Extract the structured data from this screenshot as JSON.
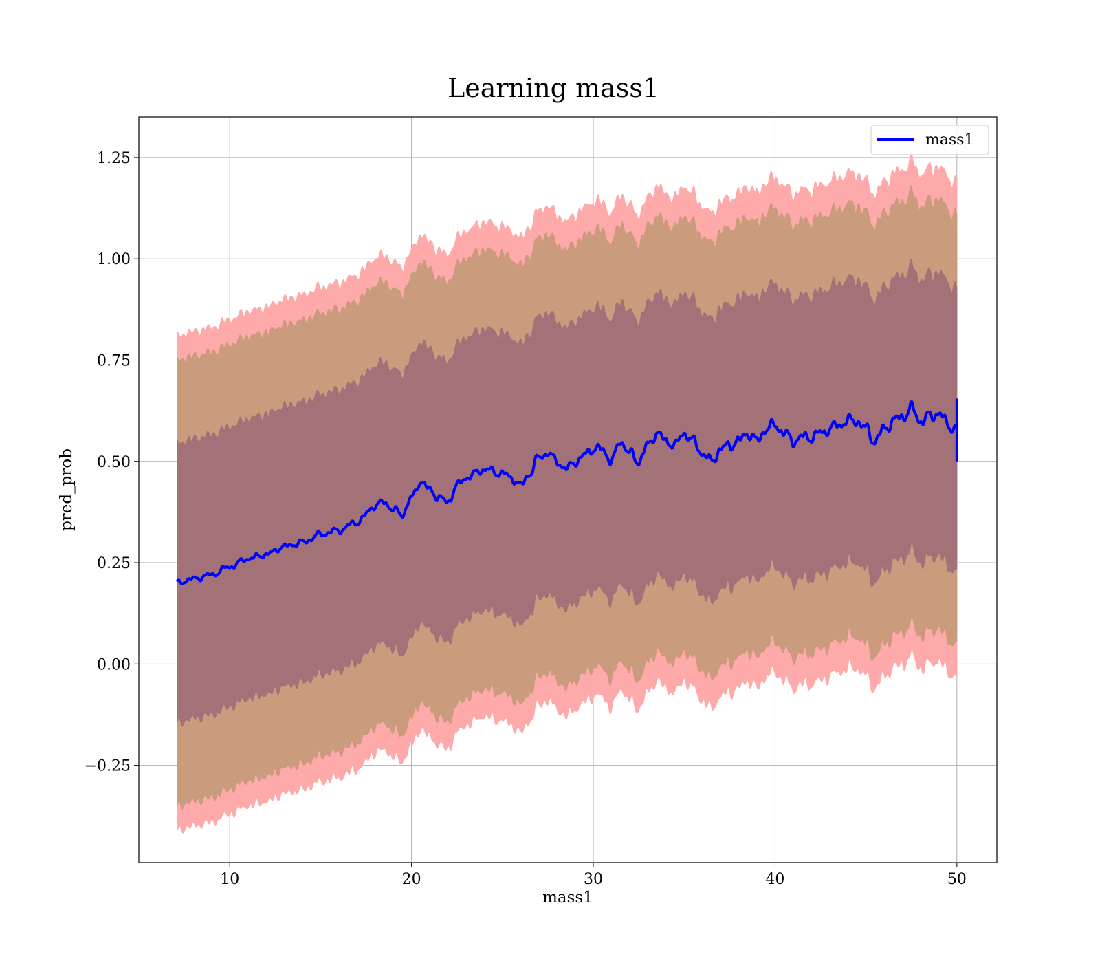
{
  "chart_data": {
    "type": "line",
    "title": "Learning mass1",
    "xlabel": "mass1",
    "ylabel": "pred_prob",
    "xlim": [
      5,
      52.2
    ],
    "ylim": [
      -0.49,
      1.35
    ],
    "xticks": [
      10,
      20,
      30,
      40,
      50
    ],
    "xtick_labels": [
      "10",
      "20",
      "30",
      "40",
      "50"
    ],
    "yticks": [
      -0.25,
      0.0,
      0.25,
      0.5,
      0.75,
      1.0,
      1.25
    ],
    "ytick_labels": [
      "−0.25",
      "0.00",
      "0.25",
      "0.50",
      "0.75",
      "1.00",
      "1.25"
    ],
    "grid": true,
    "legend_position": "top-right",
    "colors": {
      "line": "#0000ff",
      "band_outer": "#ffaaaa",
      "band_middle": "#c89a7a",
      "band_inner": "#a07078"
    },
    "series": [
      {
        "name": "mass1",
        "x": [
          7.1,
          8,
          9,
          10,
          11,
          12,
          13,
          14,
          15,
          16,
          17,
          18,
          18.5,
          19,
          19.5,
          20,
          20.5,
          21,
          21.5,
          22,
          22.5,
          23,
          24,
          25,
          25.5,
          26,
          26.5,
          27,
          27.5,
          28,
          28.5,
          29,
          30,
          30.5,
          31,
          31.5,
          32,
          32.5,
          33,
          33.5,
          34,
          34.5,
          35,
          35.5,
          36,
          36.5,
          37,
          37.5,
          38,
          38.5,
          39,
          39.5,
          40,
          40.5,
          41,
          41.5,
          42,
          42.5,
          43,
          43.5,
          44,
          44.5,
          45,
          45.5,
          46,
          46.5,
          47,
          47.5,
          48,
          48.5,
          49,
          49.5,
          50
        ],
        "values": [
          0.2,
          0.21,
          0.22,
          0.24,
          0.26,
          0.27,
          0.29,
          0.3,
          0.32,
          0.33,
          0.35,
          0.39,
          0.4,
          0.38,
          0.37,
          0.41,
          0.45,
          0.43,
          0.41,
          0.4,
          0.44,
          0.46,
          0.48,
          0.47,
          0.46,
          0.44,
          0.47,
          0.51,
          0.52,
          0.5,
          0.48,
          0.5,
          0.53,
          0.53,
          0.5,
          0.55,
          0.52,
          0.5,
          0.54,
          0.57,
          0.55,
          0.54,
          0.57,
          0.55,
          0.52,
          0.5,
          0.53,
          0.54,
          0.55,
          0.57,
          0.55,
          0.58,
          0.59,
          0.57,
          0.55,
          0.56,
          0.56,
          0.57,
          0.58,
          0.59,
          0.6,
          0.6,
          0.58,
          0.55,
          0.58,
          0.6,
          0.61,
          0.63,
          0.6,
          0.61,
          0.62,
          0.59,
          0.58
        ]
      }
    ],
    "bands": [
      {
        "level": "outer",
        "half_width_start": 0.61,
        "half_width_end": 0.61
      },
      {
        "level": "middle",
        "half_width_start": 0.55,
        "half_width_end": 0.53
      },
      {
        "level": "inner",
        "half_width_start": 0.345,
        "half_width_end": 0.35
      }
    ]
  }
}
